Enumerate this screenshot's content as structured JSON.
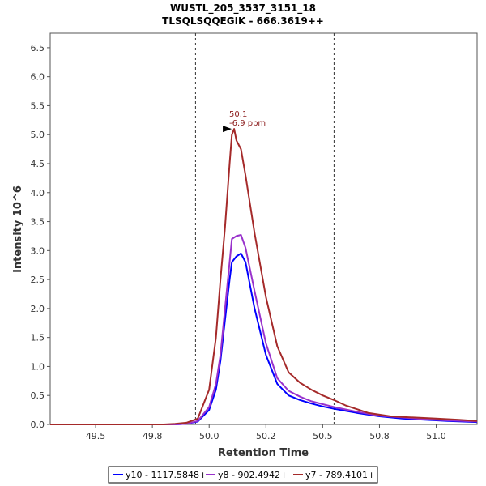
{
  "chart_data": {
    "type": "line",
    "title": "WUSTL_205_3537_3151_18",
    "subtitle": "TLSQLSQQEGIK - 666.3619++",
    "xlabel": "Retention Time",
    "ylabel": "Intensity 10^6",
    "xlim": [
      49.3,
      51.18
    ],
    "ylim": [
      0,
      6.75
    ],
    "x_ticks": [
      "49.5",
      "49.8",
      "50.0",
      "50.2",
      "50.5",
      "50.8",
      "51.0"
    ],
    "x_tick_values": [
      49.5,
      49.75,
      50.0,
      50.25,
      50.5,
      50.75,
      51.0
    ],
    "y_ticks": [
      "0.0",
      "0.5",
      "1.0",
      "1.5",
      "2.0",
      "2.5",
      "3.0",
      "3.5",
      "4.0",
      "4.5",
      "5.0",
      "5.5",
      "6.0",
      "6.5"
    ],
    "y_tick_values": [
      0,
      0.5,
      1.0,
      1.5,
      2.0,
      2.5,
      3.0,
      3.5,
      4.0,
      4.5,
      5.0,
      5.5,
      6.0,
      6.5
    ],
    "boundaries": [
      49.94,
      50.55
    ],
    "annotation": {
      "x": 50.11,
      "y": 5.1,
      "lines": [
        "50.1",
        "-6.9 ppm"
      ]
    },
    "series": [
      {
        "name": "y10 - 1117.5848+",
        "color": "#0000ff",
        "x": [
          49.3,
          49.85,
          49.9,
          49.95,
          50.0,
          50.03,
          50.05,
          50.07,
          50.09,
          50.1,
          50.12,
          50.14,
          50.16,
          50.2,
          50.25,
          50.3,
          50.35,
          50.4,
          50.45,
          50.5,
          50.55,
          50.65,
          50.75,
          50.85,
          50.95,
          51.05,
          51.18
        ],
        "values": [
          0.0,
          0.0,
          0.01,
          0.05,
          0.25,
          0.6,
          1.1,
          1.8,
          2.5,
          2.8,
          2.9,
          2.95,
          2.8,
          2.0,
          1.2,
          0.7,
          0.5,
          0.42,
          0.36,
          0.31,
          0.27,
          0.2,
          0.14,
          0.1,
          0.08,
          0.06,
          0.04
        ]
      },
      {
        "name": "y8 - 902.4942+",
        "color": "#9932cc",
        "x": [
          49.3,
          49.85,
          49.9,
          49.95,
          50.0,
          50.03,
          50.05,
          50.07,
          50.09,
          50.1,
          50.12,
          50.14,
          50.16,
          50.2,
          50.25,
          50.3,
          50.35,
          50.4,
          50.45,
          50.5,
          50.55,
          50.65,
          50.75,
          50.85,
          50.95,
          51.05,
          51.18
        ],
        "values": [
          0.0,
          0.0,
          0.01,
          0.06,
          0.3,
          0.7,
          1.2,
          2.0,
          2.8,
          3.2,
          3.25,
          3.27,
          3.05,
          2.3,
          1.4,
          0.8,
          0.58,
          0.48,
          0.4,
          0.35,
          0.3,
          0.22,
          0.15,
          0.12,
          0.09,
          0.07,
          0.05
        ]
      },
      {
        "name": "y7 - 789.4101+",
        "color": "#a52a2a",
        "x": [
          49.3,
          49.8,
          49.85,
          49.9,
          49.95,
          50.0,
          50.03,
          50.05,
          50.07,
          50.09,
          50.1,
          50.11,
          50.12,
          50.14,
          50.16,
          50.18,
          50.2,
          50.25,
          50.3,
          50.35,
          50.4,
          50.45,
          50.5,
          50.55,
          50.6,
          50.7,
          50.8,
          50.9,
          51.0,
          51.1,
          51.18
        ],
        "values": [
          0.0,
          0.0,
          0.01,
          0.03,
          0.1,
          0.6,
          1.5,
          2.5,
          3.4,
          4.5,
          5.0,
          5.1,
          4.9,
          4.75,
          4.3,
          3.8,
          3.3,
          2.2,
          1.35,
          0.9,
          0.72,
          0.6,
          0.5,
          0.42,
          0.33,
          0.2,
          0.14,
          0.12,
          0.1,
          0.08,
          0.06
        ]
      }
    ],
    "legend": "bottom-center"
  }
}
